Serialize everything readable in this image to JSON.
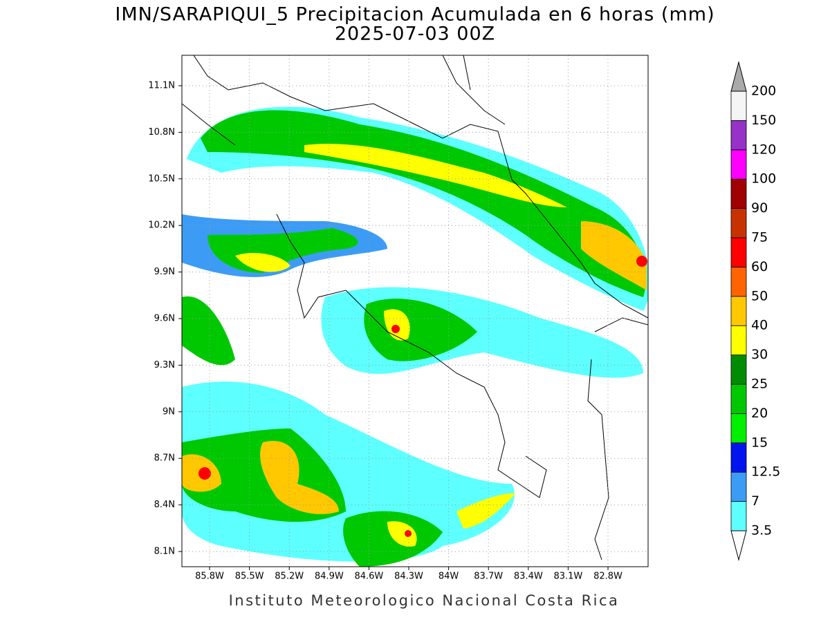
{
  "title": "IMN/SARAPIQUI_5 Precipitacion Acumulada en 6 horas (mm)",
  "subtitle": "2025-07-03 00Z",
  "lat_labels": [
    "11.1N",
    "10.8N",
    "10.5N",
    "10.2N",
    "9.9N",
    "9.6N",
    "9.3N",
    "9N",
    "8.7N",
    "8.4N",
    "8.1N"
  ],
  "lon_labels": [
    "85.8W",
    "85.5W",
    "85.2W",
    "84.9W",
    "84.6W",
    "84.3W",
    "84W",
    "83.7W",
    "83.4W",
    "83.1W",
    "82.8W"
  ],
  "colorbar": {
    "levels": [
      3.5,
      7,
      12.5,
      15,
      20,
      25,
      30,
      40,
      50,
      60,
      75,
      90,
      100,
      120,
      150,
      200
    ],
    "colors": [
      "#5effff",
      "#3c9cf5",
      "#0014f0",
      "#00f000",
      "#00c800",
      "#008c00",
      "#ffff00",
      "#ffc800",
      "#ff6400",
      "#ff0000",
      "#c83200",
      "#a00000",
      "#ff00ff",
      "#9632c8",
      "#f5f5f5"
    ],
    "over_color": "#aaaaaa",
    "under_color": "#ffffff"
  },
  "footer": "Instituto Meteorologico Nacional Costa Rica"
}
